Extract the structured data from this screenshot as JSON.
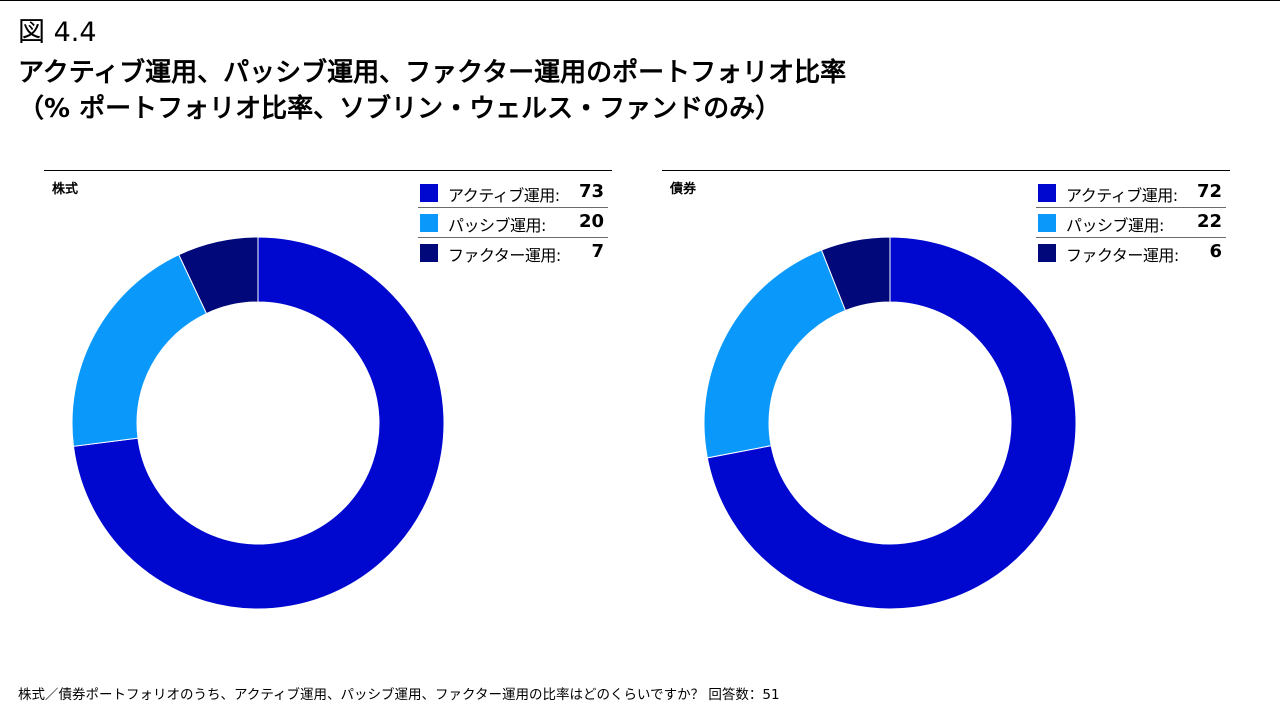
{
  "figure_label": "図 4.4",
  "title": {
    "line1": "アクティブ運用、パッシブ運用、ファクター運用のポートフォリオ比率",
    "line2": "（% ポートフォリオ比率、ソブリン・ウェルス・ファンドのみ）"
  },
  "chart_data": [
    {
      "type": "donut",
      "title": "株式",
      "categories": [
        "アクティブ運用:",
        "パッシブ運用:",
        "ファクター運用:"
      ],
      "values": [
        73,
        20,
        7
      ],
      "colors": [
        "#0008d0",
        "#0a99fa",
        "#00087a"
      ]
    },
    {
      "type": "donut",
      "title": "債券",
      "categories": [
        "アクティブ運用:",
        "パッシブ運用:",
        "ファクター運用:"
      ],
      "values": [
        72,
        22,
        6
      ],
      "colors": [
        "#0008d0",
        "#0a99fa",
        "#00087a"
      ]
    }
  ],
  "footnote": "株式／債券ポートフォリオのうち、アクティブ運用、パッシブ運用、ファクター運用の比率はどのくらいですか？ 回答数：51"
}
